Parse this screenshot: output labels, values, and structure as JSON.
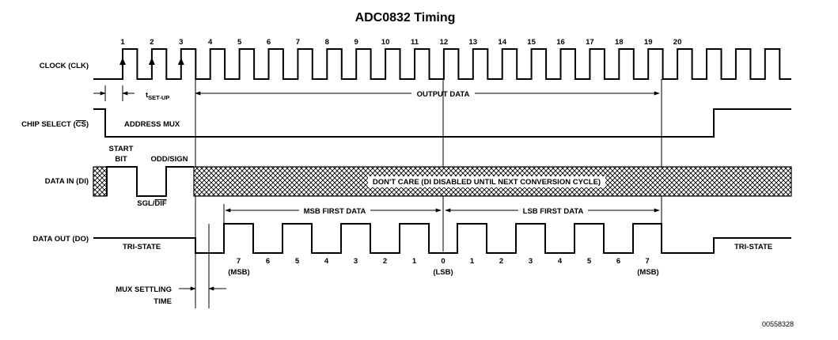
{
  "title": "ADC0832 Timing",
  "signals": {
    "clk": "CLOCK (CLK)",
    "cs_prefix": "CHIP SELECT (",
    "cs_bar": "CS",
    "cs_suffix": ")",
    "di": "DATA IN (DI)",
    "do": "DATA OUT (DO)"
  },
  "clock_numbers": [
    "1",
    "2",
    "3",
    "4",
    "5",
    "6",
    "7",
    "8",
    "9",
    "10",
    "11",
    "12",
    "13",
    "14",
    "15",
    "16",
    "17",
    "18",
    "19",
    "20"
  ],
  "annotations": {
    "tsetup_t": "t",
    "tsetup_sub": "SET-UP",
    "output_data": "OUTPUT DATA",
    "address_mux": "ADDRESS MUX",
    "start": "START",
    "bit": "BIT",
    "odd_sign": "ODD/SIGN",
    "sgl": "SGL/",
    "dif": "DIF",
    "dont_care": "DON'T CARE (DI DISABLED UNTIL NEXT CONVERSION CYCLE)",
    "msb_first": "MSB FIRST DATA",
    "lsb_first": "LSB FIRST DATA",
    "tri_state_left": "TRI-STATE",
    "tri_state_right": "TRI-STATE",
    "mux1": "MUX SETTLING",
    "mux2": "TIME",
    "msb_left": "(MSB)",
    "lsb_mid": "(LSB)",
    "msb_right": "(MSB)",
    "figure_id": "00558328"
  },
  "data_out_bits": [
    "7",
    "6",
    "5",
    "4",
    "3",
    "2",
    "1",
    "0",
    "1",
    "2",
    "3",
    "4",
    "5",
    "6",
    "7"
  ]
}
